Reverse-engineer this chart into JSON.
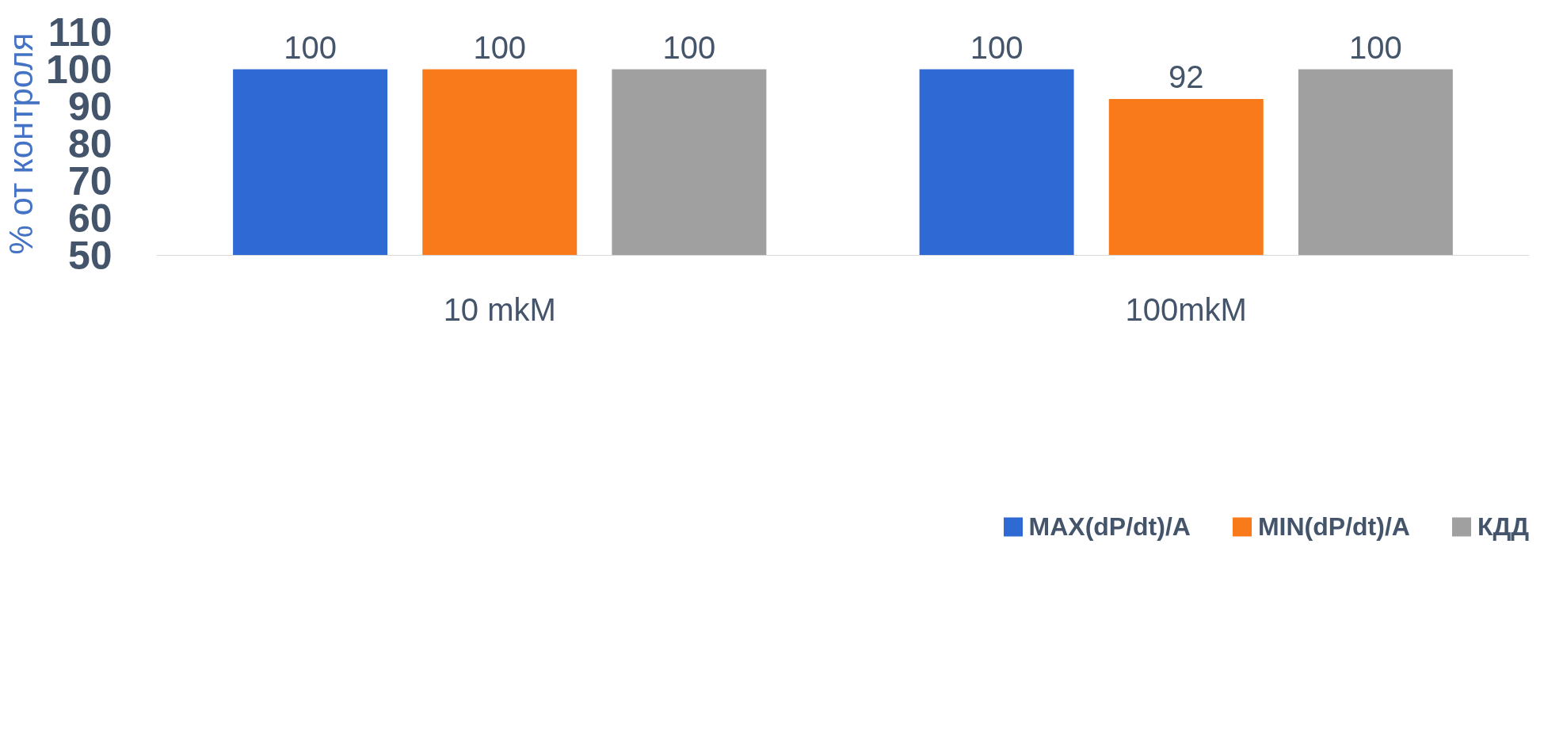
{
  "chart_data": {
    "type": "bar",
    "ylabel": "% от контроля",
    "categories": [
      "10 mkM",
      "100mkM"
    ],
    "series": [
      {
        "name": "MAX(dP/dt)/A",
        "color": "#2e69d4",
        "values": [
          100,
          100
        ]
      },
      {
        "name": "MIN(dP/dt)/A",
        "color": "#f97a1a",
        "values": [
          100,
          92
        ]
      },
      {
        "name": "КДД",
        "color": "#a0a0a0",
        "values": [
          100,
          100
        ]
      }
    ],
    "ylim": [
      50,
      110
    ],
    "yticks": [
      50,
      60,
      70,
      80,
      90,
      100,
      110
    ],
    "data_labels": true,
    "grid": false,
    "legend": "bottom"
  }
}
